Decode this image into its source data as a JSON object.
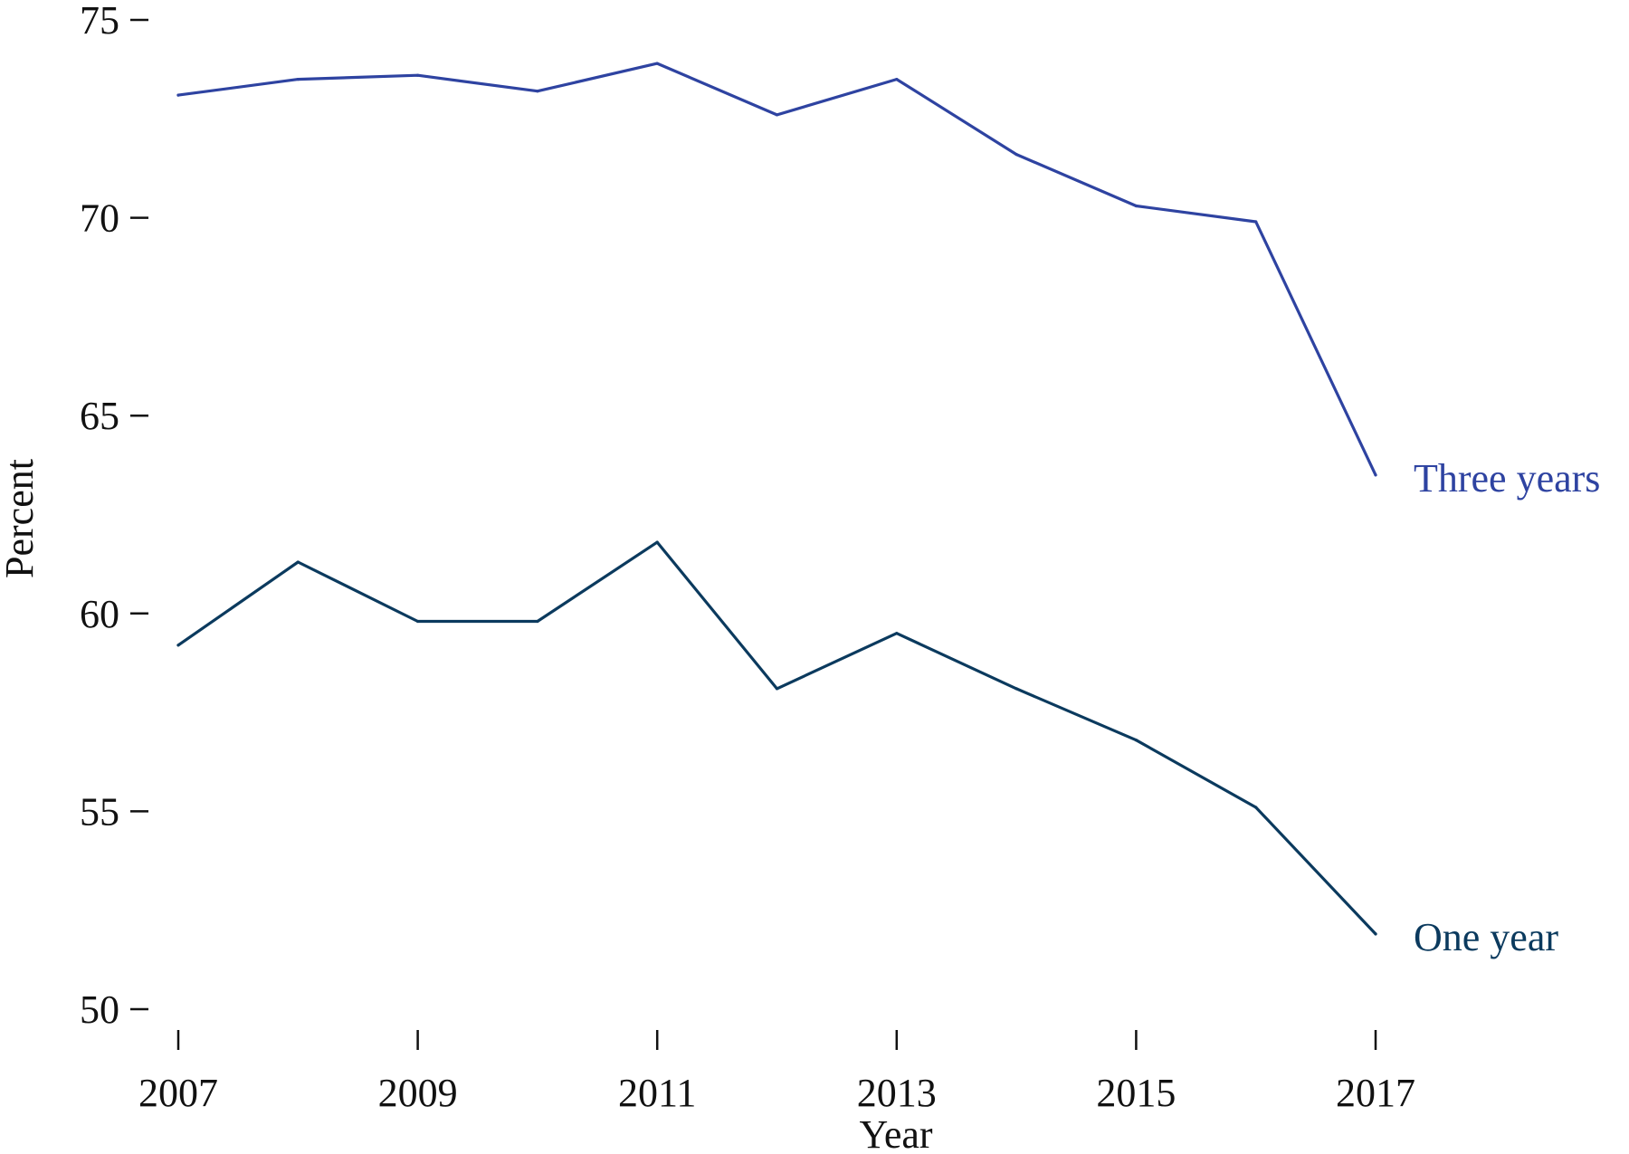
{
  "chart_data": {
    "type": "line",
    "title": "",
    "xlabel": "Year",
    "ylabel": "Percent",
    "x": [
      2007,
      2008,
      2009,
      2010,
      2011,
      2012,
      2013,
      2014,
      2015,
      2016,
      2017
    ],
    "x_ticks": [
      2007,
      2009,
      2011,
      2013,
      2015,
      2017
    ],
    "y_ticks": [
      50,
      55,
      60,
      65,
      70,
      75
    ],
    "xlim": [
      2007,
      2017
    ],
    "ylim": [
      50,
      75
    ],
    "grid": false,
    "legend": "none",
    "series": [
      {
        "name": "Three years",
        "color": "#2E43A1",
        "values": [
          73.1,
          73.5,
          73.6,
          73.2,
          73.9,
          72.6,
          73.5,
          71.6,
          70.3,
          69.9,
          63.5
        ]
      },
      {
        "name": "One year",
        "color": "#0B3A5E",
        "values": [
          59.2,
          61.3,
          59.8,
          59.8,
          61.8,
          58.1,
          59.5,
          58.1,
          56.8,
          55.1,
          51.9
        ]
      }
    ]
  }
}
